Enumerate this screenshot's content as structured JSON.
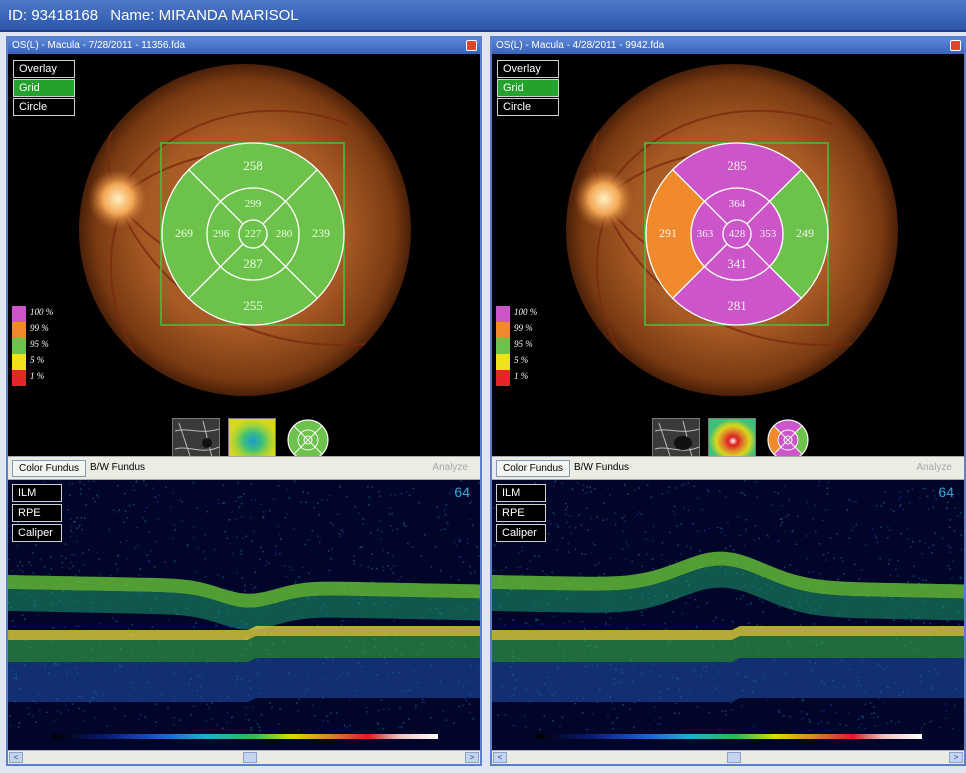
{
  "header": {
    "id_text": "ID: 93418168",
    "name_text": "Name: MIRANDA MARISOL"
  },
  "panels": [
    {
      "title": "OS(L) - Macula - 7/28/2011 - 11356.fda",
      "overlay_buttons": [
        "Overlay",
        "Grid",
        "Circle"
      ],
      "active_overlay": "Grid",
      "grid": {
        "outer_superior": "258",
        "outer_temporal": "269",
        "outer_nasal": "239",
        "outer_inferior": "255",
        "inner_superior": "299",
        "inner_temporal": "296",
        "inner_nasal": "280",
        "inner_inferior": "287",
        "center": "227"
      },
      "grid_colors": {
        "outer_superior": "#6cc24a",
        "outer_temporal": "#6cc24a",
        "outer_nasal": "#6cc24a",
        "outer_inferior": "#6cc24a",
        "inner_superior": "#6cc24a",
        "inner_temporal": "#6cc24a",
        "inner_nasal": "#6cc24a",
        "inner_inferior": "#6cc24a",
        "center": "#6cc24a"
      },
      "tabs": [
        "Color Fundus",
        "B/W Fundus"
      ],
      "analyze_label": "Analyze",
      "oct_buttons": [
        "ILM",
        "RPE",
        "Caliper"
      ],
      "oct_number": "64"
    },
    {
      "title": "OS(L) - Macula - 4/28/2011 - 9942.fda",
      "overlay_buttons": [
        "Overlay",
        "Grid",
        "Circle"
      ],
      "active_overlay": "Grid",
      "grid": {
        "outer_superior": "285",
        "outer_temporal": "291",
        "outer_nasal": "249",
        "outer_inferior": "281",
        "inner_superior": "364",
        "inner_temporal": "363",
        "inner_nasal": "353",
        "inner_inferior": "341",
        "center": "428"
      },
      "grid_colors": {
        "outer_superior": "#cc55c9",
        "outer_temporal": "#f08a2c",
        "outer_nasal": "#6cc24a",
        "outer_inferior": "#cc55c9",
        "inner_superior": "#cc55c9",
        "inner_temporal": "#cc55c9",
        "inner_nasal": "#cc55c9",
        "inner_inferior": "#cc55c9",
        "center": "#cc55c9"
      },
      "tabs": [
        "Color Fundus",
        "B/W Fundus"
      ],
      "analyze_label": "Analyze",
      "oct_buttons": [
        "ILM",
        "RPE",
        "Caliper"
      ],
      "oct_number": "64"
    }
  ],
  "legend": [
    {
      "label": "100 %",
      "color": "#cc55c9"
    },
    {
      "label": "99 %",
      "color": "#f08a2c"
    },
    {
      "label": "95 %",
      "color": "#6cc24a"
    },
    {
      "label": "5 %",
      "color": "#f2e21a"
    },
    {
      "label": "1 %",
      "color": "#e4262a"
    }
  ],
  "scroll_arrows": {
    "left": "<",
    "right": ">"
  }
}
